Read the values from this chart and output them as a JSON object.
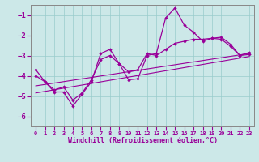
{
  "xlabel": "Windchill (Refroidissement éolien,°C)",
  "bg_color": "#cce8e8",
  "line_color": "#990099",
  "xlim": [
    -0.5,
    23.5
  ],
  "ylim": [
    -6.5,
    -0.5
  ],
  "yticks": [
    -6,
    -5,
    -4,
    -3,
    -2,
    -1
  ],
  "xticks": [
    0,
    1,
    2,
    3,
    4,
    5,
    6,
    7,
    8,
    9,
    10,
    11,
    12,
    13,
    14,
    15,
    16,
    17,
    18,
    19,
    20,
    21,
    22,
    23
  ],
  "line1_x": [
    0,
    1,
    2,
    3,
    4,
    5,
    6,
    7,
    8,
    9,
    10,
    11,
    12,
    13,
    14,
    15,
    16,
    17,
    18,
    19,
    20,
    21,
    22,
    23
  ],
  "line1_y": [
    -3.7,
    -4.3,
    -4.8,
    -4.8,
    -5.5,
    -4.9,
    -4.3,
    -2.9,
    -2.7,
    -3.4,
    -4.2,
    -4.15,
    -3.0,
    -2.9,
    -1.15,
    -0.65,
    -1.5,
    -1.85,
    -2.3,
    -2.15,
    -2.1,
    -2.45,
    -3.0,
    -2.85
  ],
  "line2_x": [
    0,
    1,
    2,
    3,
    4,
    5,
    6,
    7,
    8,
    9,
    10,
    11,
    12,
    13,
    14,
    15,
    16,
    17,
    18,
    19,
    20,
    21,
    22,
    23
  ],
  "line2_y": [
    -4.0,
    -4.3,
    -4.7,
    -4.55,
    -5.2,
    -4.85,
    -4.2,
    -3.2,
    -3.0,
    -3.4,
    -3.8,
    -3.7,
    -2.9,
    -3.0,
    -2.7,
    -2.4,
    -2.3,
    -2.2,
    -2.2,
    -2.15,
    -2.2,
    -2.55,
    -3.0,
    -2.95
  ],
  "trend_x": [
    0,
    23
  ],
  "trend_y": [
    -4.5,
    -2.9
  ],
  "trend2_x": [
    0,
    23
  ],
  "trend2_y": [
    -4.85,
    -3.05
  ]
}
